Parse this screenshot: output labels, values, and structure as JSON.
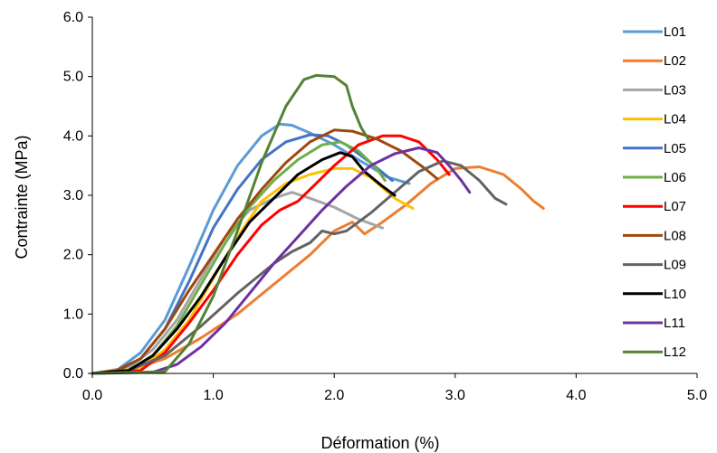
{
  "chart_data": {
    "type": "line",
    "title": "",
    "xlabel": "Déformation (%)",
    "ylabel": "Contrainte (MPa)",
    "xlim": [
      0,
      5
    ],
    "ylim": [
      0,
      6
    ],
    "x_ticks": [
      "0.0",
      "1.0",
      "2.0",
      "3.0",
      "4.0",
      "5.0"
    ],
    "y_ticks": [
      "0.0",
      "1.0",
      "2.0",
      "3.0",
      "4.0",
      "5.0",
      "6.0"
    ],
    "grid": false,
    "legend_position": "right",
    "series": [
      {
        "name": "L01",
        "color": "#5B9BD5",
        "points": [
          [
            0,
            0
          ],
          [
            0.2,
            0.05
          ],
          [
            0.4,
            0.35
          ],
          [
            0.6,
            0.9
          ],
          [
            0.8,
            1.8
          ],
          [
            1.0,
            2.75
          ],
          [
            1.2,
            3.5
          ],
          [
            1.4,
            4.0
          ],
          [
            1.55,
            4.2
          ],
          [
            1.65,
            4.18
          ],
          [
            1.8,
            4.05
          ],
          [
            2.0,
            3.85
          ],
          [
            2.2,
            3.6
          ],
          [
            2.45,
            3.3
          ],
          [
            2.62,
            3.2
          ]
        ]
      },
      {
        "name": "L02",
        "color": "#ED7D31",
        "points": [
          [
            0,
            0
          ],
          [
            0.3,
            0.05
          ],
          [
            0.6,
            0.25
          ],
          [
            0.9,
            0.6
          ],
          [
            1.2,
            1.0
          ],
          [
            1.5,
            1.5
          ],
          [
            1.8,
            2.0
          ],
          [
            2.0,
            2.4
          ],
          [
            2.15,
            2.55
          ],
          [
            2.25,
            2.35
          ],
          [
            2.4,
            2.55
          ],
          [
            2.6,
            2.85
          ],
          [
            2.8,
            3.2
          ],
          [
            3.0,
            3.45
          ],
          [
            3.2,
            3.48
          ],
          [
            3.4,
            3.35
          ],
          [
            3.55,
            3.1
          ],
          [
            3.65,
            2.9
          ],
          [
            3.73,
            2.78
          ]
        ]
      },
      {
        "name": "L03",
        "color": "#A5A5A5",
        "points": [
          [
            0,
            0
          ],
          [
            0.3,
            0.1
          ],
          [
            0.5,
            0.4
          ],
          [
            0.7,
            0.9
          ],
          [
            0.9,
            1.6
          ],
          [
            1.1,
            2.3
          ],
          [
            1.3,
            2.75
          ],
          [
            1.5,
            2.95
          ],
          [
            1.65,
            3.05
          ],
          [
            1.8,
            2.95
          ],
          [
            2.0,
            2.8
          ],
          [
            2.2,
            2.6
          ],
          [
            2.4,
            2.45
          ]
        ]
      },
      {
        "name": "L04",
        "color": "#FFC000",
        "points": [
          [
            0,
            0
          ],
          [
            0.4,
            0.1
          ],
          [
            0.6,
            0.4
          ],
          [
            0.8,
            0.9
          ],
          [
            1.0,
            1.6
          ],
          [
            1.2,
            2.3
          ],
          [
            1.4,
            2.9
          ],
          [
            1.6,
            3.2
          ],
          [
            1.8,
            3.35
          ],
          [
            2.0,
            3.45
          ],
          [
            2.15,
            3.45
          ],
          [
            2.3,
            3.3
          ],
          [
            2.5,
            2.95
          ],
          [
            2.65,
            2.78
          ]
        ]
      },
      {
        "name": "L05",
        "color": "#4472C4",
        "points": [
          [
            0,
            0
          ],
          [
            0.2,
            0.03
          ],
          [
            0.4,
            0.25
          ],
          [
            0.6,
            0.75
          ],
          [
            0.8,
            1.55
          ],
          [
            1.0,
            2.45
          ],
          [
            1.2,
            3.1
          ],
          [
            1.4,
            3.6
          ],
          [
            1.6,
            3.9
          ],
          [
            1.8,
            4.02
          ],
          [
            1.95,
            4.0
          ],
          [
            2.1,
            3.85
          ],
          [
            2.3,
            3.55
          ],
          [
            2.48,
            3.25
          ]
        ]
      },
      {
        "name": "L06",
        "color": "#70AD47",
        "points": [
          [
            0,
            0
          ],
          [
            0.3,
            0.05
          ],
          [
            0.5,
            0.3
          ],
          [
            0.7,
            0.8
          ],
          [
            0.9,
            1.5
          ],
          [
            1.1,
            2.2
          ],
          [
            1.3,
            2.8
          ],
          [
            1.5,
            3.25
          ],
          [
            1.7,
            3.6
          ],
          [
            1.9,
            3.85
          ],
          [
            2.05,
            3.9
          ],
          [
            2.2,
            3.75
          ],
          [
            2.35,
            3.45
          ],
          [
            2.42,
            3.25
          ]
        ]
      },
      {
        "name": "L07",
        "color": "#FF0000",
        "points": [
          [
            0,
            0
          ],
          [
            0.4,
            0.05
          ],
          [
            0.6,
            0.35
          ],
          [
            0.8,
            0.85
          ],
          [
            1.0,
            1.4
          ],
          [
            1.2,
            2.0
          ],
          [
            1.4,
            2.5
          ],
          [
            1.55,
            2.75
          ],
          [
            1.7,
            2.9
          ],
          [
            1.85,
            3.2
          ],
          [
            2.0,
            3.5
          ],
          [
            2.2,
            3.85
          ],
          [
            2.4,
            4.0
          ],
          [
            2.55,
            4.0
          ],
          [
            2.7,
            3.9
          ],
          [
            2.85,
            3.6
          ],
          [
            2.95,
            3.35
          ]
        ]
      },
      {
        "name": "L08",
        "color": "#9E480E",
        "points": [
          [
            0,
            0
          ],
          [
            0.2,
            0.05
          ],
          [
            0.4,
            0.25
          ],
          [
            0.6,
            0.75
          ],
          [
            0.8,
            1.4
          ],
          [
            1.0,
            2.0
          ],
          [
            1.2,
            2.6
          ],
          [
            1.4,
            3.1
          ],
          [
            1.6,
            3.55
          ],
          [
            1.8,
            3.9
          ],
          [
            2.0,
            4.1
          ],
          [
            2.15,
            4.08
          ],
          [
            2.35,
            3.95
          ],
          [
            2.55,
            3.75
          ],
          [
            2.75,
            3.45
          ],
          [
            2.85,
            3.28
          ]
        ]
      },
      {
        "name": "L09",
        "color": "#636363",
        "points": [
          [
            0,
            0
          ],
          [
            0.3,
            0.05
          ],
          [
            0.6,
            0.3
          ],
          [
            0.9,
            0.8
          ],
          [
            1.2,
            1.35
          ],
          [
            1.5,
            1.85
          ],
          [
            1.65,
            2.05
          ],
          [
            1.8,
            2.2
          ],
          [
            1.9,
            2.4
          ],
          [
            2.0,
            2.35
          ],
          [
            2.1,
            2.4
          ],
          [
            2.3,
            2.7
          ],
          [
            2.5,
            3.05
          ],
          [
            2.7,
            3.4
          ],
          [
            2.9,
            3.58
          ],
          [
            3.05,
            3.5
          ],
          [
            3.2,
            3.25
          ],
          [
            3.33,
            2.95
          ],
          [
            3.42,
            2.85
          ]
        ]
      },
      {
        "name": "L10",
        "color": "#000000",
        "points": [
          [
            0,
            0
          ],
          [
            0.3,
            0.05
          ],
          [
            0.5,
            0.3
          ],
          [
            0.7,
            0.75
          ],
          [
            0.9,
            1.3
          ],
          [
            1.1,
            1.95
          ],
          [
            1.3,
            2.55
          ],
          [
            1.5,
            2.95
          ],
          [
            1.7,
            3.35
          ],
          [
            1.9,
            3.6
          ],
          [
            2.05,
            3.72
          ],
          [
            2.15,
            3.65
          ],
          [
            2.25,
            3.4
          ],
          [
            2.4,
            3.15
          ],
          [
            2.5,
            3.0
          ]
        ]
      },
      {
        "name": "L11",
        "color": "#7030A0",
        "points": [
          [
            0,
            0
          ],
          [
            0.5,
            0.02
          ],
          [
            0.7,
            0.15
          ],
          [
            0.9,
            0.45
          ],
          [
            1.1,
            0.85
          ],
          [
            1.3,
            1.35
          ],
          [
            1.5,
            1.85
          ],
          [
            1.7,
            2.3
          ],
          [
            1.9,
            2.75
          ],
          [
            2.1,
            3.15
          ],
          [
            2.3,
            3.5
          ],
          [
            2.5,
            3.7
          ],
          [
            2.7,
            3.8
          ],
          [
            2.85,
            3.72
          ],
          [
            2.95,
            3.5
          ],
          [
            3.05,
            3.25
          ],
          [
            3.12,
            3.05
          ]
        ]
      },
      {
        "name": "L12",
        "color": "#548235",
        "points": [
          [
            0,
            0
          ],
          [
            0.6,
            0.03
          ],
          [
            0.8,
            0.5
          ],
          [
            1.0,
            1.3
          ],
          [
            1.2,
            2.4
          ],
          [
            1.4,
            3.55
          ],
          [
            1.6,
            4.5
          ],
          [
            1.75,
            4.95
          ],
          [
            1.85,
            5.02
          ],
          [
            2.0,
            5.0
          ],
          [
            2.1,
            4.85
          ],
          [
            2.15,
            4.5
          ],
          [
            2.22,
            4.15
          ],
          [
            2.28,
            3.95
          ]
        ]
      }
    ]
  }
}
